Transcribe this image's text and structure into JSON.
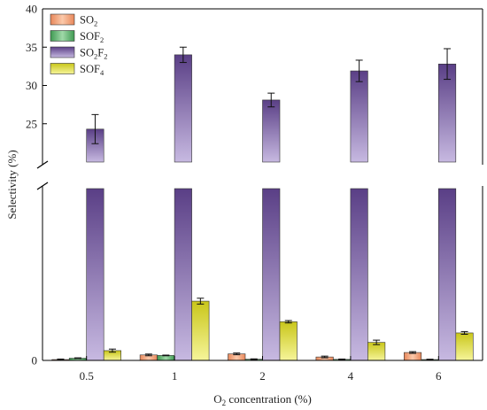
{
  "chart_data": {
    "type": "bar",
    "title": "",
    "xlabel_parts": [
      "O",
      "2",
      " concentration (%)"
    ],
    "ylabel": "Selectivity (%)",
    "categories": [
      "0.5",
      "1",
      "2",
      "4",
      "6"
    ],
    "y_break": true,
    "lower_ylim": [
      0,
      10
    ],
    "upper_ylim": [
      20,
      40
    ],
    "upper_yticks": [
      25,
      30,
      35,
      40
    ],
    "legend_position": "top-left",
    "series": [
      {
        "name": "SO2",
        "name_parts": [
          "SO",
          "2",
          ""
        ],
        "color": "#f2a37c",
        "values": [
          0.05,
          0.32,
          0.38,
          0.2,
          0.46
        ],
        "errors": [
          0.03,
          0.05,
          0.05,
          0.05,
          0.05
        ]
      },
      {
        "name": "SOF2",
        "name_parts": [
          "SOF",
          "2",
          ""
        ],
        "color": "#6cbf7a",
        "values": [
          0.13,
          0.29,
          0.07,
          0.06,
          0.05
        ],
        "errors": [
          0.02,
          0.02,
          0.02,
          0.02,
          0.02
        ]
      },
      {
        "name": "SO2F2",
        "name_parts": [
          "SO",
          "2",
          "F",
          "2"
        ],
        "color": "#8a76b3",
        "values": [
          24.3,
          34.0,
          28.1,
          31.9,
          32.8
        ],
        "errors": [
          1.9,
          1.0,
          0.9,
          1.4,
          2.0
        ]
      },
      {
        "name": "SOF4",
        "name_parts": [
          "SOF",
          "4",
          ""
        ],
        "color": "#e7e64a",
        "values": [
          0.57,
          3.45,
          2.25,
          1.05,
          1.6
        ],
        "errors": [
          0.09,
          0.17,
          0.07,
          0.13,
          0.08
        ]
      }
    ]
  }
}
